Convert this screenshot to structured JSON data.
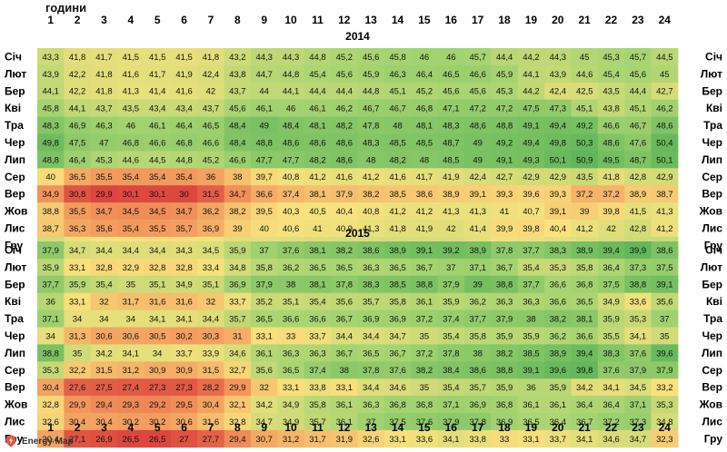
{
  "header": {
    "title": "години"
  },
  "brand": {
    "name": "Energy Map",
    "icon": "energy-map-logo-icon"
  },
  "chart_data": {
    "type": "heatmap",
    "title": "години",
    "hours": [
      "1",
      "2",
      "3",
      "4",
      "5",
      "6",
      "7",
      "8",
      "9",
      "10",
      "11",
      "12",
      "13",
      "14",
      "15",
      "16",
      "17",
      "18",
      "19",
      "20",
      "21",
      "22",
      "23",
      "24"
    ],
    "months": [
      "Січ",
      "Лют",
      "Бер",
      "Кві",
      "Тра",
      "Чер",
      "Лип",
      "Сер",
      "Вер",
      "Жов",
      "Лис",
      "Гру"
    ],
    "blocks": [
      {
        "year": "2014",
        "color_range": [
          29.9,
          50.9
        ],
        "rows": [
          [
            "43,3",
            "41,8",
            "41,7",
            "41,5",
            "41,5",
            "41,5",
            "41,8",
            "43,2",
            "44,3",
            "44,3",
            "44,8",
            "45,2",
            "45,6",
            "45,8",
            "46",
            "46",
            "45,7",
            "44,4",
            "44,2",
            "44,3",
            "45",
            "45,3",
            "45,7",
            "44,5"
          ],
          [
            "43,9",
            "42,2",
            "41,8",
            "41,6",
            "41,7",
            "41,9",
            "42,4",
            "43,8",
            "44,7",
            "44,8",
            "45,4",
            "45,6",
            "45,9",
            "46,3",
            "46,4",
            "46,5",
            "46,6",
            "45,9",
            "44,1",
            "43,9",
            "44,6",
            "45,4",
            "45,6",
            "45"
          ],
          [
            "44,1",
            "42,2",
            "41,8",
            "41,3",
            "41,4",
            "41,6",
            "42",
            "43,7",
            "44",
            "44,1",
            "44,4",
            "44,4",
            "44,8",
            "45,1",
            "45,2",
            "45,6",
            "45,6",
            "45,3",
            "44,2",
            "42,4",
            "42,5",
            "43,5",
            "44,4",
            "42,7"
          ],
          [
            "45,8",
            "44,1",
            "43,7",
            "43,5",
            "43,4",
            "43,4",
            "43,7",
            "45,6",
            "46,1",
            "46",
            "46,1",
            "46,2",
            "46,7",
            "46,7",
            "46,8",
            "47,1",
            "47,2",
            "47,2",
            "47,5",
            "47,3",
            "45,1",
            "43,8",
            "45,1",
            "46,2"
          ],
          [
            "48,3",
            "46,9",
            "46,3",
            "46",
            "46,1",
            "46,4",
            "46,5",
            "48,4",
            "49",
            "48,4",
            "48,1",
            "48,2",
            "47,8",
            "48",
            "48,1",
            "48,3",
            "48,6",
            "48,8",
            "49,1",
            "49,4",
            "49,2",
            "46,6",
            "46,7",
            "48,6"
          ],
          [
            "49,8",
            "47,5",
            "47",
            "46,8",
            "46,6",
            "46,8",
            "46,6",
            "48,4",
            "48,8",
            "48,6",
            "48,6",
            "48,6",
            "48,3",
            "48,5",
            "48,5",
            "48,7",
            "49",
            "49,2",
            "49,4",
            "49,8",
            "50,3",
            "48,6",
            "47,6",
            "50,4"
          ],
          [
            "48,8",
            "46,4",
            "45,3",
            "44,6",
            "44,5",
            "44,8",
            "45,2",
            "46,6",
            "47,7",
            "47,7",
            "48,2",
            "48,6",
            "48",
            "48,2",
            "48",
            "48,5",
            "49",
            "49,1",
            "49,3",
            "50,1",
            "50,9",
            "49,5",
            "48,7",
            "50,1"
          ],
          [
            "40",
            "36,5",
            "35,5",
            "35,4",
            "35,4",
            "35,4",
            "36",
            "38",
            "39,7",
            "40,8",
            "41,2",
            "41,6",
            "41,2",
            "41,6",
            "41,7",
            "41,9",
            "42,4",
            "42,7",
            "42,9",
            "42,9",
            "43,5",
            "41,8",
            "42,8",
            "42,9"
          ],
          [
            "34,9",
            "30,8",
            "29,9",
            "30,1",
            "30,1",
            "30",
            "31,5",
            "34,7",
            "36,6",
            "37,4",
            "38,1",
            "37,9",
            "38,2",
            "38,5",
            "38,6",
            "38,9",
            "39,1",
            "39,3",
            "39,6",
            "39,3",
            "37,2",
            "37,2",
            "38,9",
            "38,7"
          ],
          [
            "38,8",
            "35,5",
            "34,7",
            "34,5",
            "34,5",
            "34,7",
            "36,2",
            "38,2",
            "39,5",
            "40,3",
            "40,5",
            "40,4",
            "40,8",
            "41,2",
            "41,2",
            "41,3",
            "41,3",
            "41",
            "40,7",
            "39,1",
            "39",
            "39,8",
            "41,5",
            "41,3"
          ],
          [
            "38,7",
            "36,3",
            "35,6",
            "35,4",
            "35,5",
            "35,7",
            "36,9",
            "39",
            "40",
            "40,6",
            "41",
            "40,9",
            "41,3",
            "41,8",
            "41,9",
            "42",
            "41,4",
            "39,9",
            "39,8",
            "40,4",
            "41,2",
            "42",
            "42,8",
            "41,2"
          ],
          [
            "42,7",
            "41",
            "40,5",
            "40,3",
            "40,2",
            "40,2",
            "40,7",
            "41,9",
            "41,7",
            "41,9",
            "42,2",
            "42,3",
            "42,4",
            "42,5",
            "42,5",
            "42,5",
            "41,6",
            "40,8",
            "41,2",
            "41,6",
            "42",
            "42,4",
            "43,1",
            "43,5"
          ]
        ]
      },
      {
        "year": "2015",
        "color_range": [
          26.5,
          40.0
        ],
        "rows": [
          [
            "37,9",
            "34,7",
            "34,4",
            "34,4",
            "34,4",
            "34,3",
            "34,5",
            "35,9",
            "37",
            "37,6",
            "38,1",
            "38,2",
            "38,6",
            "38,9",
            "39,1",
            "39,2",
            "38,9",
            "37,8",
            "37,7",
            "38,3",
            "38,9",
            "39,4",
            "39,9",
            "38,6"
          ],
          [
            "35,9",
            "33,1",
            "32,8",
            "32,9",
            "32,8",
            "32,8",
            "33,4",
            "34,8",
            "35,8",
            "36,2",
            "36,5",
            "36,5",
            "36,3",
            "36,5",
            "36,7",
            "37",
            "37,1",
            "36,7",
            "35,4",
            "35,3",
            "35,8",
            "36,4",
            "37,3",
            "37,5"
          ],
          [
            "37,7",
            "35,9",
            "35,4",
            "35",
            "35,1",
            "34,9",
            "35,1",
            "36,9",
            "37,9",
            "38",
            "38,1",
            "37,8",
            "38,3",
            "38,5",
            "38,8",
            "37,9",
            "39",
            "38,8",
            "37,7",
            "36,6",
            "36,8",
            "37,5",
            "38,8",
            "39,1"
          ],
          [
            "36",
            "33,1",
            "32",
            "31,7",
            "31,6",
            "31,6",
            "32",
            "33,7",
            "35,2",
            "35,1",
            "35,4",
            "35,6",
            "35,7",
            "35,8",
            "36,1",
            "35,9",
            "36,2",
            "36,3",
            "36,3",
            "36,6",
            "36,5",
            "34,9",
            "33,6",
            "35,6"
          ],
          [
            "37,1",
            "34",
            "34",
            "34",
            "34,1",
            "34,1",
            "34,4",
            "35,7",
            "36,5",
            "36,6",
            "36,6",
            "36,7",
            "36,9",
            "36,9",
            "37,2",
            "37,4",
            "37,7",
            "37,9",
            "38",
            "38,2",
            "38,1",
            "35,9",
            "35,3",
            "37"
          ],
          [
            "34",
            "31,3",
            "30,6",
            "30,6",
            "30,5",
            "30,2",
            "30,3",
            "31",
            "33,1",
            "33",
            "33,7",
            "34,4",
            "34,4",
            "34,7",
            "35",
            "35,4",
            "35,8",
            "35,9",
            "35,9",
            "36,2",
            "36,6",
            "35,5",
            "34,1",
            "35"
          ],
          [
            "38,8",
            "35",
            "34,2",
            "34,1",
            "34",
            "33,7",
            "33,9",
            "34,6",
            "36,1",
            "36,3",
            "36,3",
            "36,7",
            "36,5",
            "36,7",
            "37,2",
            "37,8",
            "38",
            "38,2",
            "38,5",
            "38,9",
            "39,4",
            "38,3",
            "37,6",
            "39,6"
          ],
          [
            "35,3",
            "32,2",
            "31,5",
            "31,2",
            "30,9",
            "30,9",
            "31,5",
            "32,7",
            "35,6",
            "36,5",
            "37,4",
            "38",
            "37,8",
            "37,6",
            "38,2",
            "38,4",
            "38,6",
            "38,8",
            "39,1",
            "39,6",
            "39,8",
            "37,6",
            "37,9",
            "37,9"
          ],
          [
            "30,4",
            "27,6",
            "27,5",
            "27,4",
            "27,3",
            "27,3",
            "28,2",
            "29,9",
            "32",
            "33,1",
            "33,8",
            "33,1",
            "34,4",
            "34,6",
            "35",
            "35,4",
            "35,7",
            "35,9",
            "36",
            "35,9",
            "34,2",
            "34,1",
            "34,5",
            "33,2"
          ],
          [
            "32,8",
            "29,9",
            "29,4",
            "29,3",
            "29,2",
            "29,5",
            "30,4",
            "32,1",
            "34,2",
            "34,9",
            "35,8",
            "36,1",
            "36,3",
            "36,8",
            "36,8",
            "37,1",
            "36,9",
            "36,8",
            "36,1",
            "36,1",
            "36,4",
            "36,4",
            "37,1",
            "35,3"
          ],
          [
            "32,6",
            "30,4",
            "30,4",
            "30,2",
            "30,2",
            "30,6",
            "31,6",
            "32,8",
            "34,7",
            "34,9",
            "35,7",
            "36,1",
            "37",
            "37,5",
            "37,6",
            "37,9",
            "37,8",
            "36,9",
            "36,5",
            "36,4",
            "36,7",
            "37,2",
            "37,3",
            "34,8"
          ],
          [
            "30,4",
            "27,1",
            "26,9",
            "26,5",
            "26,5",
            "27",
            "27,7",
            "29,4",
            "30,7",
            "31,2",
            "31,7",
            "31,9",
            "32,6",
            "33,1",
            "33,6",
            "34,1",
            "33,8",
            "33",
            "33,1",
            "33,7",
            "34,1",
            "34,6",
            "34,7",
            "32,3"
          ]
        ]
      }
    ]
  }
}
